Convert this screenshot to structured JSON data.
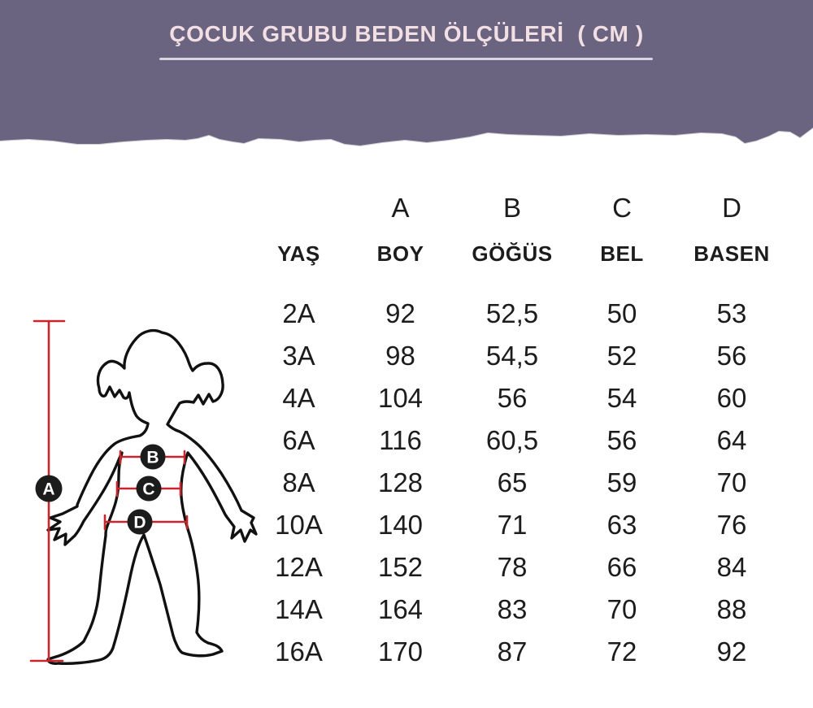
{
  "header": {
    "title": "ÇOCUK GRUBU BEDEN ÖLÇÜLERİ  ( CM )"
  },
  "colors": {
    "banner_bg": "#6a6480",
    "banner_text": "#f2dfe3",
    "underline": "#d8d4e0",
    "measure_red": "#c9262c",
    "marker_bg": "#1c1c1c",
    "marker_text": "#ffffff",
    "table_text": "#1c1c1c"
  },
  "figure": {
    "markers": [
      "A",
      "B",
      "C",
      "D"
    ]
  },
  "table": {
    "letters": [
      "",
      "A",
      "B",
      "C",
      "D"
    ],
    "headers": [
      "YAŞ",
      "BOY",
      "GÖĞÜS",
      "BEL",
      "BASEN"
    ],
    "rows": [
      [
        "2A",
        "92",
        "52,5",
        "50",
        "53"
      ],
      [
        "3A",
        "98",
        "54,5",
        "52",
        "56"
      ],
      [
        "4A",
        "104",
        "56",
        "54",
        "60"
      ],
      [
        "6A",
        "116",
        "60,5",
        "56",
        "64"
      ],
      [
        "8A",
        "128",
        "65",
        "59",
        "70"
      ],
      [
        "10A",
        "140",
        "71",
        "63",
        "76"
      ],
      [
        "12A",
        "152",
        "78",
        "66",
        "84"
      ],
      [
        "14A",
        "164",
        "83",
        "70",
        "88"
      ],
      [
        "16A",
        "170",
        "87",
        "72",
        "92"
      ]
    ]
  },
  "chart_data": {
    "type": "table",
    "title": "ÇOCUK GRUBU BEDEN ÖLÇÜLERİ ( CM )",
    "unit": "cm",
    "categories": [
      "2A",
      "3A",
      "4A",
      "6A",
      "8A",
      "10A",
      "12A",
      "14A",
      "16A"
    ],
    "series": [
      {
        "name": "BOY (A)",
        "values": [
          92,
          98,
          104,
          116,
          128,
          140,
          152,
          164,
          170
        ]
      },
      {
        "name": "GÖĞÜS (B)",
        "values": [
          52.5,
          54.5,
          56,
          60.5,
          65,
          71,
          78,
          83,
          87
        ]
      },
      {
        "name": "BEL (C)",
        "values": [
          50,
          52,
          54,
          56,
          59,
          63,
          66,
          70,
          72
        ]
      },
      {
        "name": "BASEN (D)",
        "values": [
          53,
          56,
          60,
          64,
          70,
          76,
          84,
          88,
          92
        ]
      }
    ]
  }
}
